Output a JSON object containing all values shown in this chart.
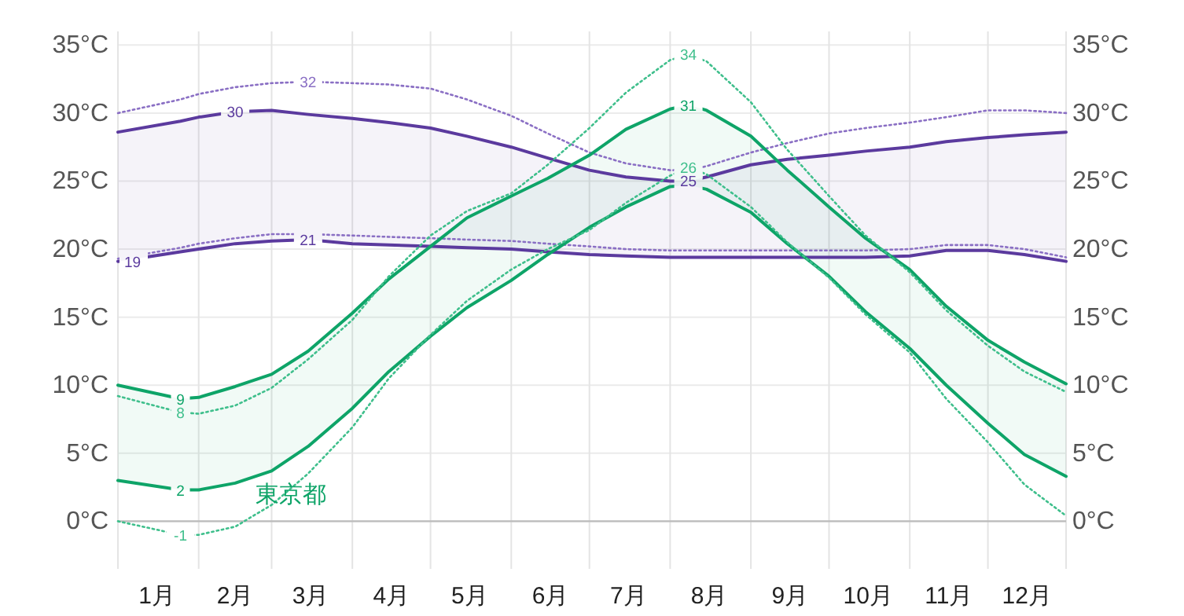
{
  "chart_data": {
    "type": "line",
    "x": [
      "--01-01",
      "--01-25",
      "--02-01",
      "--02-15",
      "--03-01",
      "--03-15",
      "--04-01",
      "--04-15",
      "--05-01",
      "--05-15",
      "--06-01",
      "--06-15",
      "--07-01",
      "--07-15",
      "--08-01",
      "--08-08",
      "--08-15",
      "--09-01",
      "--09-15",
      "--10-01",
      "--10-15",
      "--11-01",
      "--11-15",
      "--12-01",
      "--12-15",
      "--12-31"
    ],
    "xlim": [
      "--01-01",
      "--12-31"
    ],
    "xticks": [
      {
        "value": "--01-01",
        "label": null
      },
      {
        "value": "--01-16",
        "label": "1月"
      },
      {
        "value": "--02-01",
        "label": null
      },
      {
        "value": "--02-15",
        "label": "2月"
      },
      {
        "value": "--03-01",
        "label": null
      },
      {
        "value": "--03-16",
        "label": "3月"
      },
      {
        "value": "--04-01",
        "label": null
      },
      {
        "value": "--04-16",
        "label": "4月"
      },
      {
        "value": "--05-01",
        "label": null
      },
      {
        "value": "--05-16",
        "label": "5月"
      },
      {
        "value": "--06-01",
        "label": null
      },
      {
        "value": "--06-16",
        "label": "6月"
      },
      {
        "value": "--07-01",
        "label": null
      },
      {
        "value": "--07-16",
        "label": "7月"
      },
      {
        "value": "--08-01",
        "label": null
      },
      {
        "value": "--08-16",
        "label": "8月"
      },
      {
        "value": "--09-01",
        "label": null
      },
      {
        "value": "--09-16",
        "label": "9月"
      },
      {
        "value": "--10-01",
        "label": null
      },
      {
        "value": "--10-16",
        "label": "10月"
      },
      {
        "value": "--11-01",
        "label": null
      },
      {
        "value": "--11-16",
        "label": "11月"
      },
      {
        "value": "--12-01",
        "label": null
      },
      {
        "value": "--12-16",
        "label": "12月"
      },
      {
        "value": "--12-31",
        "label": null
      }
    ],
    "ylim": [
      -3.5,
      36
    ],
    "yticks": [
      {
        "value": 0,
        "label": "0°C"
      },
      {
        "value": 5,
        "label": "5°C"
      },
      {
        "value": 10,
        "label": "10°C"
      },
      {
        "value": 15,
        "label": "15°C"
      },
      {
        "value": 20,
        "label": "20°C"
      },
      {
        "value": 25,
        "label": "25°C"
      },
      {
        "value": 30,
        "label": "30°C"
      },
      {
        "value": 35,
        "label": "35°C"
      }
    ],
    "y2lim": [
      -3.5,
      36
    ],
    "y2ticks": [
      {
        "value": 0,
        "label": "0°C"
      },
      {
        "value": 5,
        "label": "5°C"
      },
      {
        "value": 10,
        "label": "10°C"
      },
      {
        "value": 15,
        "label": "15°C"
      },
      {
        "value": 20,
        "label": "20°C"
      },
      {
        "value": 25,
        "label": "25°C"
      },
      {
        "value": 30,
        "label": "30°C"
      },
      {
        "value": 35,
        "label": "35°C"
      }
    ],
    "grid": true,
    "ref_lines": [
      {
        "axis": "y",
        "value": 0,
        "color": "#bbbbbb"
      }
    ],
    "series": [
      {
        "color": "#5b3a9e",
        "line_style": "solid",
        "values": [
          28.6,
          29.4,
          29.7,
          30.1,
          30.2,
          29.9,
          29.6,
          29.3,
          28.9,
          28.3,
          27.5,
          26.7,
          25.8,
          25.3,
          25.0,
          25.0,
          25.3,
          26.2,
          26.6,
          26.9,
          27.2,
          27.5,
          27.9,
          28.2,
          28.4,
          28.6
        ],
        "upper": [
          28.6,
          29.4,
          29.7,
          30.1,
          30.2,
          29.9,
          29.6,
          29.3,
          28.9,
          28.3,
          27.5,
          26.7,
          25.8,
          25.3,
          25.0,
          25.0,
          25.3,
          26.2,
          26.6,
          26.9,
          27.2,
          27.5,
          27.9,
          28.2,
          28.4,
          28.6
        ],
        "lower": [
          19.1,
          19.8,
          20.0,
          20.4,
          20.6,
          20.7,
          20.4,
          20.3,
          20.2,
          20.1,
          20.0,
          19.8,
          19.6,
          19.5,
          19.4,
          19.4,
          19.4,
          19.4,
          19.4,
          19.4,
          19.4,
          19.5,
          19.9,
          19.9,
          19.6,
          19.1
        ],
        "value_labels": [
          null,
          null,
          null,
          "30",
          null,
          null,
          null,
          null,
          null,
          null,
          null,
          null,
          null,
          null,
          null,
          "25",
          null,
          null,
          null,
          null,
          null,
          null,
          null,
          null,
          null,
          null
        ]
      },
      {
        "color": "#5b3a9e",
        "line_style": "solid",
        "values": [
          19.1,
          19.8,
          20.0,
          20.4,
          20.6,
          20.7,
          20.4,
          20.3,
          20.2,
          20.1,
          20.0,
          19.8,
          19.6,
          19.5,
          19.4,
          19.4,
          19.4,
          19.4,
          19.4,
          19.4,
          19.4,
          19.5,
          19.9,
          19.9,
          19.6,
          19.1
        ],
        "value_labels": [
          "19",
          null,
          null,
          null,
          null,
          "21",
          null,
          null,
          null,
          null,
          null,
          null,
          null,
          null,
          null,
          null,
          null,
          null,
          null,
          null,
          null,
          null,
          null,
          null,
          null,
          null
        ]
      },
      {
        "color": "#8a6fc4",
        "line_style": "dotted",
        "values": [
          30.0,
          31.0,
          31.4,
          31.9,
          32.2,
          32.3,
          32.2,
          32.1,
          31.8,
          31.0,
          29.8,
          28.5,
          27.1,
          26.3,
          25.8,
          25.8,
          26.1,
          27.1,
          27.8,
          28.5,
          28.9,
          29.3,
          29.7,
          30.2,
          30.2,
          30.0
        ],
        "value_labels": [
          null,
          null,
          null,
          null,
          null,
          "32",
          null,
          null,
          null,
          null,
          null,
          null,
          null,
          null,
          null,
          null,
          null,
          null,
          null,
          null,
          null,
          null,
          null,
          null,
          null,
          null
        ]
      },
      {
        "color": "#8a6fc4",
        "line_style": "dotted",
        "values": [
          19.3,
          20.1,
          20.4,
          20.8,
          21.1,
          21.1,
          21.0,
          20.9,
          20.8,
          20.7,
          20.6,
          20.4,
          20.2,
          20.0,
          19.9,
          19.9,
          19.9,
          19.9,
          19.9,
          19.9,
          19.9,
          20.0,
          20.3,
          20.3,
          20.0,
          19.4
        ]
      },
      {
        "color": "#0ea468",
        "line_style": "solid",
        "values": [
          10.0,
          9.0,
          9.1,
          9.9,
          10.8,
          12.5,
          15.3,
          17.8,
          20.2,
          22.3,
          23.9,
          25.2,
          26.9,
          28.8,
          30.3,
          30.6,
          30.2,
          28.3,
          25.8,
          23.1,
          20.8,
          18.5,
          15.8,
          13.3,
          11.7,
          10.1
        ],
        "upper": [
          10.0,
          9.0,
          9.1,
          9.9,
          10.8,
          12.5,
          15.3,
          17.8,
          20.2,
          22.3,
          23.9,
          25.2,
          26.9,
          28.8,
          30.3,
          30.6,
          30.2,
          28.3,
          25.8,
          23.1,
          20.8,
          18.5,
          15.8,
          13.3,
          11.7,
          10.1
        ],
        "lower": [
          3.0,
          2.3,
          2.3,
          2.8,
          3.7,
          5.5,
          8.3,
          11.0,
          13.6,
          15.7,
          17.7,
          19.6,
          21.6,
          23.1,
          24.6,
          24.7,
          24.4,
          22.7,
          20.4,
          18.0,
          15.4,
          12.7,
          10.0,
          7.2,
          4.9,
          3.3
        ],
        "value_labels": [
          null,
          "9",
          null,
          null,
          null,
          null,
          null,
          null,
          null,
          null,
          null,
          null,
          null,
          null,
          null,
          "31",
          null,
          null,
          null,
          null,
          null,
          null,
          null,
          null,
          null,
          null
        ]
      },
      {
        "name": "東京都",
        "color": "#0ea468",
        "line_style": "solid",
        "values": [
          3.0,
          2.3,
          2.3,
          2.8,
          3.7,
          5.5,
          8.3,
          11.0,
          13.6,
          15.7,
          17.7,
          19.6,
          21.6,
          23.1,
          24.6,
          24.7,
          24.4,
          22.7,
          20.4,
          18.0,
          15.4,
          12.7,
          10.0,
          7.2,
          4.9,
          3.3
        ],
        "value_labels": [
          null,
          "2",
          null,
          null,
          null,
          null,
          null,
          null,
          null,
          null,
          null,
          null,
          null,
          null,
          null,
          null,
          null,
          null,
          null,
          null,
          null,
          null,
          null,
          null,
          null,
          null
        ]
      },
      {
        "color": "#3fbf8c",
        "line_style": "dotted",
        "values": [
          9.2,
          8.0,
          7.9,
          8.5,
          9.8,
          11.9,
          14.8,
          18.0,
          21.0,
          22.8,
          24.1,
          26.2,
          28.9,
          31.5,
          33.9,
          34.3,
          33.8,
          30.8,
          27.3,
          23.9,
          21.0,
          18.3,
          15.5,
          12.9,
          11.0,
          9.5
        ],
        "value_labels": [
          null,
          "8",
          null,
          null,
          null,
          null,
          null,
          null,
          null,
          null,
          null,
          null,
          null,
          null,
          null,
          "34",
          null,
          null,
          null,
          null,
          null,
          null,
          null,
          null,
          null,
          null
        ]
      },
      {
        "color": "#3fbf8c",
        "line_style": "dotted",
        "values": [
          0.0,
          -1.0,
          -1.0,
          -0.4,
          1.2,
          3.5,
          6.9,
          10.5,
          13.7,
          16.2,
          18.5,
          20.0,
          21.4,
          23.4,
          25.4,
          26.0,
          25.5,
          23.1,
          20.5,
          17.9,
          15.2,
          12.4,
          9.0,
          5.8,
          2.7,
          0.4
        ],
        "value_labels": [
          null,
          "-1",
          null,
          null,
          null,
          null,
          null,
          null,
          null,
          null,
          null,
          null,
          null,
          null,
          null,
          "26",
          null,
          null,
          null,
          null,
          null,
          null,
          null,
          null,
          null,
          null
        ]
      }
    ]
  }
}
